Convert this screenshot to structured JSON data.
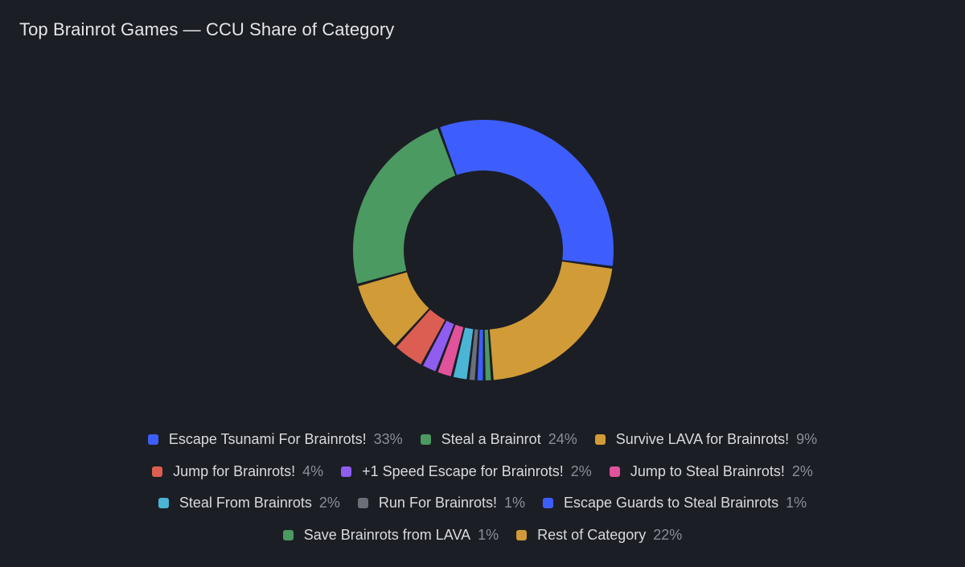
{
  "chart_data": {
    "type": "pie",
    "variant": "donut",
    "title": "Top Brainrot Games — CCU Share of Category",
    "unit": "%",
    "legend_position": "bottom",
    "series": [
      {
        "name": "Escape Tsunami For Brainrots!",
        "value": 33,
        "label": "33%",
        "color": "#3d5efc"
      },
      {
        "name": "Rest of Category",
        "value": 22,
        "label": "22%",
        "color": "#d19b37"
      },
      {
        "name": "Save Brainrots from LAVA",
        "value": 1,
        "label": "1%",
        "color": "#4b9a62"
      },
      {
        "name": "Escape Guards to Steal Brainrots",
        "value": 1,
        "label": "1%",
        "color": "#3d5efc"
      },
      {
        "name": "Run For Brainrots!",
        "value": 1,
        "label": "1%",
        "color": "#6b6f7a"
      },
      {
        "name": "Steal From Brainrots",
        "value": 2,
        "label": "2%",
        "color": "#4bb5d6"
      },
      {
        "name": "Jump to Steal Brainrots!",
        "value": 2,
        "label": "2%",
        "color": "#e0529a"
      },
      {
        "name": "+1 Speed Escape for Brainrots!",
        "value": 2,
        "label": "2%",
        "color": "#8f5df0"
      },
      {
        "name": "Jump for Brainrots!",
        "value": 4,
        "label": "4%",
        "color": "#dc5e52"
      },
      {
        "name": "Survive LAVA for Brainrots!",
        "value": 9,
        "label": "9%",
        "color": "#d19b37"
      },
      {
        "name": "Steal a Brainrot",
        "value": 24,
        "label": "24%",
        "color": "#4b9a62"
      }
    ],
    "legend_rows": [
      [
        {
          "name": "Escape Tsunami For Brainrots!",
          "label": "33%",
          "color": "#3d5efc"
        },
        {
          "name": "Steal a Brainrot",
          "label": "24%",
          "color": "#4b9a62"
        },
        {
          "name": "Survive LAVA for Brainrots!",
          "label": "9%",
          "color": "#d19b37"
        }
      ],
      [
        {
          "name": "Jump for Brainrots!",
          "label": "4%",
          "color": "#dc5e52"
        },
        {
          "name": "+1 Speed Escape for Brainrots!",
          "label": "2%",
          "color": "#8f5df0"
        },
        {
          "name": "Jump to Steal Brainrots!",
          "label": "2%",
          "color": "#e0529a"
        }
      ],
      [
        {
          "name": "Steal From Brainrots",
          "label": "2%",
          "color": "#4bb5d6"
        },
        {
          "name": "Run For Brainrots!",
          "label": "1%",
          "color": "#6b6f7a"
        },
        {
          "name": "Escape Guards to Steal Brainrots",
          "label": "1%",
          "color": "#3d5efc"
        }
      ],
      [
        {
          "name": "Save Brainrots from LAVA",
          "label": "1%",
          "color": "#4b9a62"
        },
        {
          "name": "Rest of Category",
          "label": "22%",
          "color": "#d19b37"
        }
      ]
    ]
  }
}
